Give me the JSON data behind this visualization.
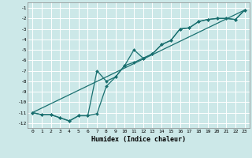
{
  "xlabel": "Humidex (Indice chaleur)",
  "xlim": [
    -0.5,
    23.5
  ],
  "ylim": [
    -12.5,
    -0.5
  ],
  "xticks": [
    0,
    1,
    2,
    3,
    4,
    5,
    6,
    7,
    8,
    9,
    10,
    11,
    12,
    13,
    14,
    15,
    16,
    17,
    18,
    19,
    20,
    21,
    22,
    23
  ],
  "yticks": [
    -1,
    -2,
    -3,
    -4,
    -5,
    -6,
    -7,
    -8,
    -9,
    -10,
    -11,
    -12
  ],
  "bg_color": "#cce8e8",
  "grid_color": "#b0d8d8",
  "line_color": "#1a7070",
  "series": {
    "line1_x": [
      0,
      1,
      2,
      3,
      4,
      5,
      6,
      7,
      8,
      9,
      10,
      11,
      12,
      13,
      14,
      15,
      16,
      17,
      18,
      19,
      20,
      21,
      22,
      23
    ],
    "line1_y": [
      -11.0,
      -11.2,
      -11.2,
      -11.5,
      -11.8,
      -11.3,
      -11.3,
      -11.1,
      -8.5,
      -7.6,
      -6.5,
      -6.2,
      -5.8,
      -5.4,
      -4.5,
      -4.1,
      -3.0,
      -2.9,
      -2.3,
      -2.1,
      -2.0,
      -2.0,
      -2.1,
      -1.2
    ],
    "line2_x": [
      0,
      1,
      2,
      3,
      4,
      5,
      6,
      7,
      8,
      9,
      10,
      11,
      12,
      13,
      14,
      15,
      16,
      17,
      18,
      19,
      20,
      21,
      22,
      23
    ],
    "line2_y": [
      -11.0,
      -11.2,
      -11.2,
      -11.5,
      -11.8,
      -11.3,
      -11.3,
      -7.0,
      -8.0,
      -7.6,
      -6.5,
      -5.0,
      -5.8,
      -5.4,
      -4.5,
      -4.1,
      -3.0,
      -2.9,
      -2.3,
      -2.1,
      -2.0,
      -2.0,
      -2.1,
      -1.2
    ],
    "line3_x": [
      0,
      23
    ],
    "line3_y": [
      -11.0,
      -1.2
    ]
  }
}
